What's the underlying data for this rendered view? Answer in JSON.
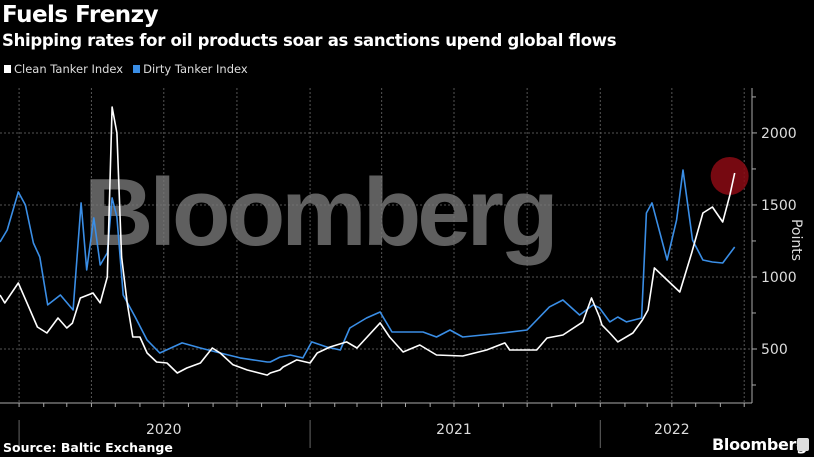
{
  "header": {
    "title": "Fuels Frenzy",
    "subtitle": "Shipping rates for oil products soar as sanctions upend global flows"
  },
  "footer": {
    "source": "Source: Baltic Exchange",
    "brand": "Bloomberg"
  },
  "watermark": "Bloomberg",
  "colors": {
    "clean": "#ffffff",
    "dirty": "#3a8ee6",
    "highlight": "#8b0a14",
    "grid": "#555555"
  },
  "chart_data": {
    "type": "line",
    "title": "Fuels Frenzy",
    "subtitle": "Shipping rates for oil products soar as sanctions upend global flows",
    "ylabel": "Points",
    "xlabel": "",
    "ylim": [
      125,
      2312
    ],
    "xlim": [
      "2019-12-08",
      "2022-07-02"
    ],
    "yticks": [
      500,
      1000,
      1500,
      2000
    ],
    "xtick_labels": [
      {
        "date": "2020-07-01",
        "label": "2020"
      },
      {
        "date": "2021-07-01",
        "label": "2021"
      },
      {
        "date": "2022-04-01",
        "label": "2022"
      }
    ],
    "year_separators": [
      "2020-01-01",
      "2021-01-01",
      "2022-01-01"
    ],
    "grid": true,
    "legend_position": "top-left",
    "highlight": {
      "series": "Clean Tanker Index",
      "date": "2022-06-19"
    },
    "series": [
      {
        "name": "Clean Tanker Index",
        "points": [
          [
            "2019-12-08",
            875
          ],
          [
            "2019-12-14",
            820
          ],
          [
            "2019-12-31",
            958
          ],
          [
            "2020-01-11",
            820
          ],
          [
            "2020-01-24",
            653
          ],
          [
            "2020-02-05",
            611
          ],
          [
            "2020-02-19",
            715
          ],
          [
            "2020-03-01",
            646
          ],
          [
            "2020-03-08",
            680
          ],
          [
            "2020-03-18",
            854
          ],
          [
            "2020-04-03",
            889
          ],
          [
            "2020-04-12",
            820
          ],
          [
            "2020-04-21",
            1000
          ],
          [
            "2020-04-27",
            2180
          ],
          [
            "2020-05-03",
            2000
          ],
          [
            "2020-05-09",
            1139
          ],
          [
            "2020-05-16",
            820
          ],
          [
            "2020-05-23",
            583
          ],
          [
            "2020-06-01",
            583
          ],
          [
            "2020-06-10",
            472
          ],
          [
            "2020-06-22",
            410
          ],
          [
            "2020-07-05",
            403
          ],
          [
            "2020-07-18",
            333
          ],
          [
            "2020-07-30",
            368
          ],
          [
            "2020-08-16",
            403
          ],
          [
            "2020-08-31",
            507
          ],
          [
            "2020-09-10",
            472
          ],
          [
            "2020-09-26",
            390
          ],
          [
            "2020-10-14",
            354
          ],
          [
            "2020-11-08",
            319
          ],
          [
            "2020-11-12",
            333
          ],
          [
            "2020-11-24",
            354
          ],
          [
            "2020-11-28",
            375
          ],
          [
            "2020-12-15",
            424
          ],
          [
            "2021-01-01",
            403
          ],
          [
            "2021-01-10",
            472
          ],
          [
            "2021-01-26",
            514
          ],
          [
            "2021-02-16",
            549
          ],
          [
            "2021-03-01",
            507
          ],
          [
            "2021-03-30",
            681
          ],
          [
            "2021-04-11",
            583
          ],
          [
            "2021-04-28",
            479
          ],
          [
            "2021-05-19",
            528
          ],
          [
            "2021-06-09",
            458
          ],
          [
            "2021-07-12",
            451
          ],
          [
            "2021-08-11",
            493
          ],
          [
            "2021-09-03",
            542
          ],
          [
            "2021-09-09",
            493
          ],
          [
            "2021-10-13",
            493
          ],
          [
            "2021-10-26",
            576
          ],
          [
            "2021-11-15",
            597
          ],
          [
            "2021-12-10",
            688
          ],
          [
            "2021-12-21",
            854
          ],
          [
            "2021-12-31",
            722
          ],
          [
            "2022-01-03",
            667
          ],
          [
            "2022-01-13",
            611
          ],
          [
            "2022-01-23",
            549
          ],
          [
            "2022-02-11",
            611
          ],
          [
            "2022-02-23",
            701
          ],
          [
            "2022-03-02",
            771
          ],
          [
            "2022-03-10",
            1063
          ],
          [
            "2022-03-26",
            979
          ],
          [
            "2022-04-11",
            896
          ],
          [
            "2022-04-26",
            1167
          ],
          [
            "2022-05-10",
            1444
          ],
          [
            "2022-05-22",
            1486
          ],
          [
            "2022-06-04",
            1382
          ],
          [
            "2022-06-13",
            1570
          ],
          [
            "2022-06-19",
            1722
          ]
        ]
      },
      {
        "name": "Dirty Tanker Index",
        "points": [
          [
            "2019-12-08",
            1243
          ],
          [
            "2019-12-17",
            1326
          ],
          [
            "2019-12-31",
            1590
          ],
          [
            "2020-01-09",
            1500
          ],
          [
            "2020-01-19",
            1236
          ],
          [
            "2020-01-27",
            1139
          ],
          [
            "2020-02-06",
            806
          ],
          [
            "2020-02-22",
            875
          ],
          [
            "2020-03-09",
            771
          ],
          [
            "2020-03-19",
            1514
          ],
          [
            "2020-03-26",
            1049
          ],
          [
            "2020-04-04",
            1410
          ],
          [
            "2020-04-12",
            1083
          ],
          [
            "2020-04-21",
            1167
          ],
          [
            "2020-04-27",
            1549
          ],
          [
            "2020-05-03",
            1417
          ],
          [
            "2020-05-11",
            875
          ],
          [
            "2020-05-26",
            722
          ],
          [
            "2020-06-10",
            562
          ],
          [
            "2020-06-26",
            472
          ],
          [
            "2020-07-24",
            542
          ],
          [
            "2020-08-16",
            507
          ],
          [
            "2020-09-10",
            472
          ],
          [
            "2020-10-05",
            438
          ],
          [
            "2020-11-08",
            410
          ],
          [
            "2020-11-12",
            410
          ],
          [
            "2020-11-24",
            444
          ],
          [
            "2020-12-07",
            458
          ],
          [
            "2020-12-23",
            438
          ],
          [
            "2021-01-03",
            549
          ],
          [
            "2021-01-22",
            514
          ],
          [
            "2021-02-08",
            493
          ],
          [
            "2021-02-20",
            646
          ],
          [
            "2021-03-13",
            715
          ],
          [
            "2021-03-30",
            757
          ],
          [
            "2021-04-14",
            618
          ],
          [
            "2021-05-23",
            618
          ],
          [
            "2021-06-09",
            583
          ],
          [
            "2021-06-26",
            632
          ],
          [
            "2021-07-12",
            583
          ],
          [
            "2021-08-31",
            611
          ],
          [
            "2021-10-01",
            632
          ],
          [
            "2021-10-29",
            792
          ],
          [
            "2021-11-15",
            840
          ],
          [
            "2021-12-06",
            736
          ],
          [
            "2021-12-23",
            806
          ],
          [
            "2021-12-31",
            785
          ],
          [
            "2022-01-13",
            688
          ],
          [
            "2022-01-23",
            722
          ],
          [
            "2022-02-03",
            688
          ],
          [
            "2022-02-22",
            715
          ],
          [
            "2022-02-28",
            1444
          ],
          [
            "2022-03-07",
            1514
          ],
          [
            "2022-03-26",
            1118
          ],
          [
            "2022-04-07",
            1396
          ],
          [
            "2022-04-15",
            1743
          ],
          [
            "2022-04-27",
            1257
          ],
          [
            "2022-05-10",
            1118
          ],
          [
            "2022-05-22",
            1104
          ],
          [
            "2022-06-04",
            1097
          ],
          [
            "2022-06-19",
            1208
          ]
        ]
      }
    ]
  }
}
